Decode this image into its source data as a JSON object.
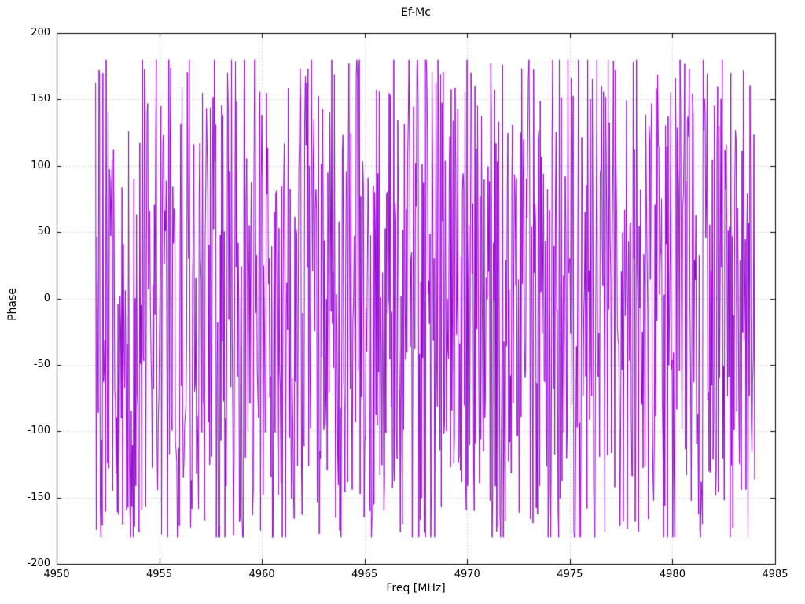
{
  "chart_data": {
    "type": "line",
    "title": "Ef-Mc",
    "xlabel": "Freq [MHz]",
    "ylabel": "Phase",
    "xlim": [
      4950,
      4985
    ],
    "ylim": [
      -200,
      200
    ],
    "xticks": [
      4950,
      4955,
      4960,
      4965,
      4970,
      4975,
      4980,
      4985
    ],
    "yticks": [
      -200,
      -150,
      -100,
      -50,
      0,
      50,
      100,
      150,
      200
    ],
    "grid": true,
    "grid_style": "dotted",
    "grid_color": "#b8b8b8",
    "border_color": "#000000",
    "legend": false,
    "data_description": "Dense wrapped interferometric phase vs frequency; values appear uniformly scattered between -180 and +180 degrees across 4951.9-4984 MHz, drawn as a connected purple line forming a noise-like band",
    "series": [
      {
        "name": "Ef-Mc phase",
        "color": "#9400d3",
        "style": "line",
        "x_start": 4951.9,
        "x_end": 4984.0,
        "n_points": 1000,
        "y_min": -180,
        "y_max": 180,
        "distribution": "uniform-random",
        "seed": 987654321
      }
    ]
  }
}
